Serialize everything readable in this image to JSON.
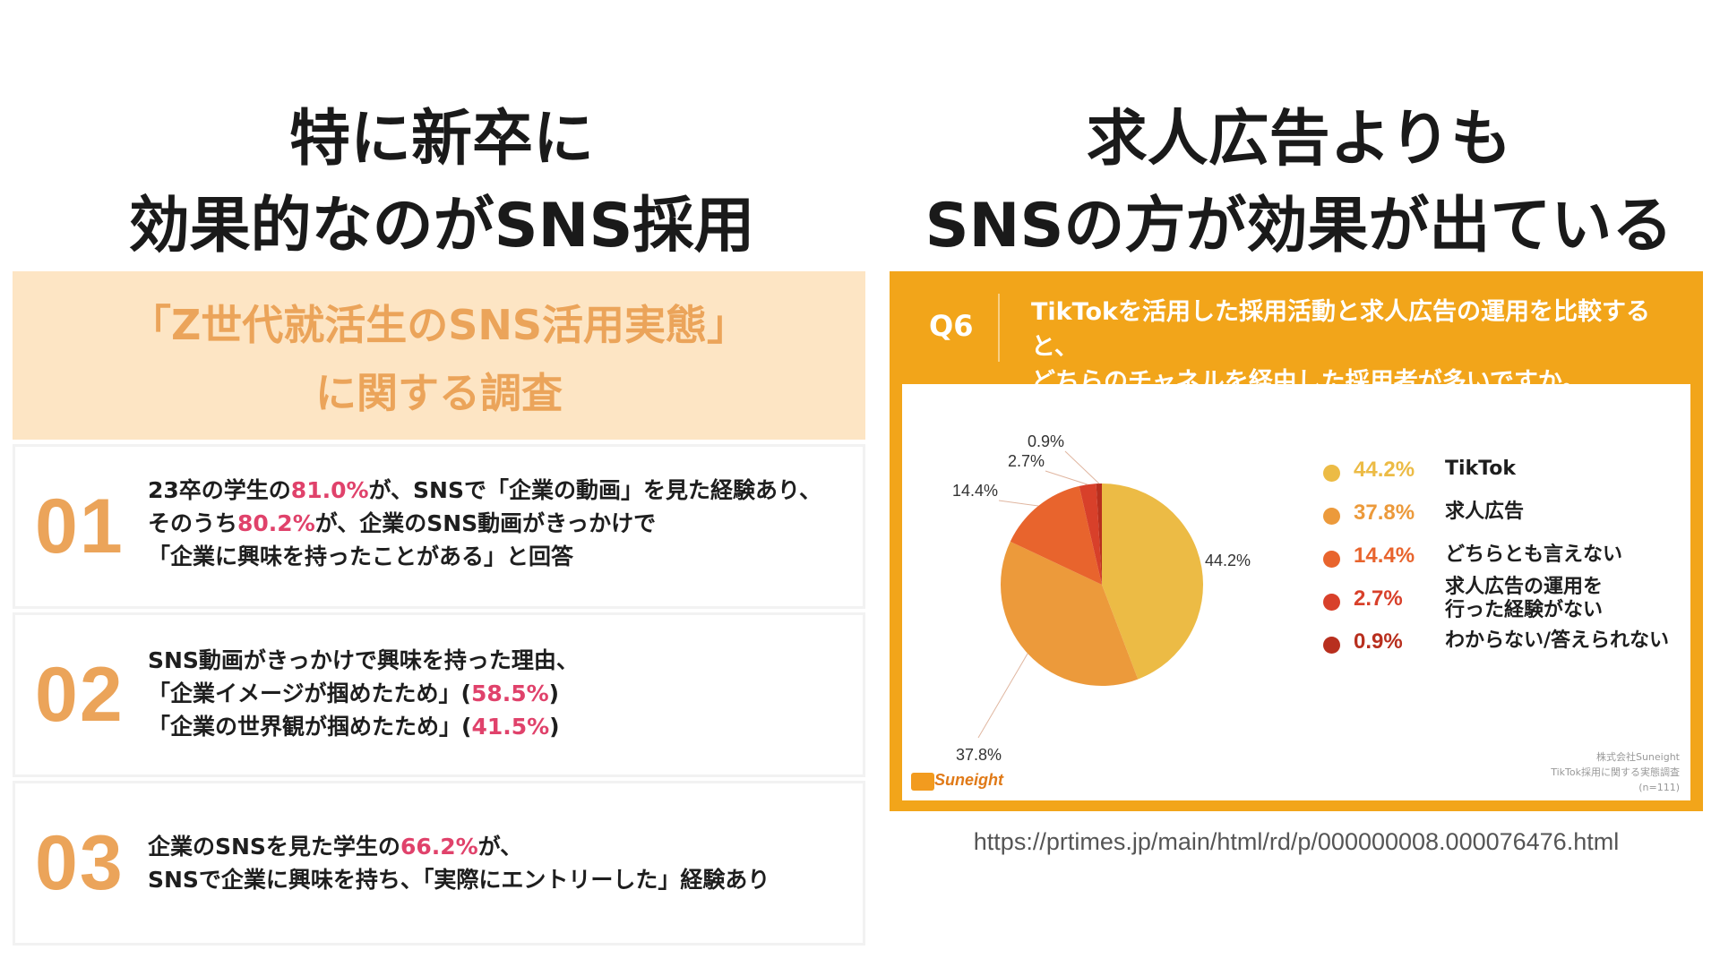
{
  "left_heading": {
    "line1": "特に新卒に",
    "line2": "効果的なのがSNS採用"
  },
  "right_heading": {
    "line1": "求人広告よりも",
    "line2": "SNSの方が効果が出ている"
  },
  "survey": {
    "title_line1": "「Z世代就活生のSNS活用実態」",
    "title_line2": "に関する調査",
    "findings": [
      {
        "num": "01",
        "l1a": "23卒の学生の",
        "l1b": "81.0%",
        "l1c": "が、SNSで「企業の動画」を見た経験あり、",
        "l2a": "そのうち",
        "l2b": "80.2%",
        "l2c": "が、企業のSNS動画がきっかけで",
        "l3": "「企業に興味を持ったことがある」と回答"
      },
      {
        "num": "02",
        "l1": "SNS動画がきっかけで興味を持った理由、",
        "l2a": "「企業イメージが掴めたため」(",
        "l2b": "58.5%",
        "l2c": ")",
        "l3a": "「企業の世界観が掴めたため」(",
        "l3b": "41.5%",
        "l3c": ")"
      },
      {
        "num": "03",
        "l1a": "企業のSNSを見た学生の",
        "l1b": "66.2%",
        "l1c": "が、",
        "l2": "SNSで企業に興味を持ち、「実際にエントリーした」経験あり"
      }
    ]
  },
  "question": {
    "label": "Q6",
    "line1": "TikTokを活用した採用活動と求人広告の運用を比較すると、",
    "line2": "どちらのチャネルを経由した採用者が多いですか。"
  },
  "chart_data": {
    "type": "pie",
    "slices": [
      {
        "label": "TikTok",
        "value": 44.2,
        "pct_label": "44.2%",
        "color": "#ecbb45"
      },
      {
        "label": "求人広告",
        "value": 37.8,
        "pct_label": "37.8%",
        "color": "#ec9a3b"
      },
      {
        "label": "どちらとも言えない",
        "value": 14.4,
        "pct_label": "14.4%",
        "color": "#e8642d"
      },
      {
        "label_line1": "求人広告の運用を",
        "label_line2": "行った経験がない",
        "value": 2.7,
        "pct_label": "2.7%",
        "color": "#d8402a"
      },
      {
        "label": "わからない/答えられない",
        "value": 0.9,
        "pct_label": "0.9%",
        "color": "#b82f1e"
      }
    ],
    "legend_position": "right"
  },
  "chart_footer": {
    "logo_text": "Suneight",
    "credit_line1": "株式会社Suneight",
    "credit_line2": "TikTok採用に関する実態調査",
    "credit_line3": "(n=111)"
  },
  "source_url": "https://prtimes.jp/main/html/rd/p/000000008.000076476.html"
}
